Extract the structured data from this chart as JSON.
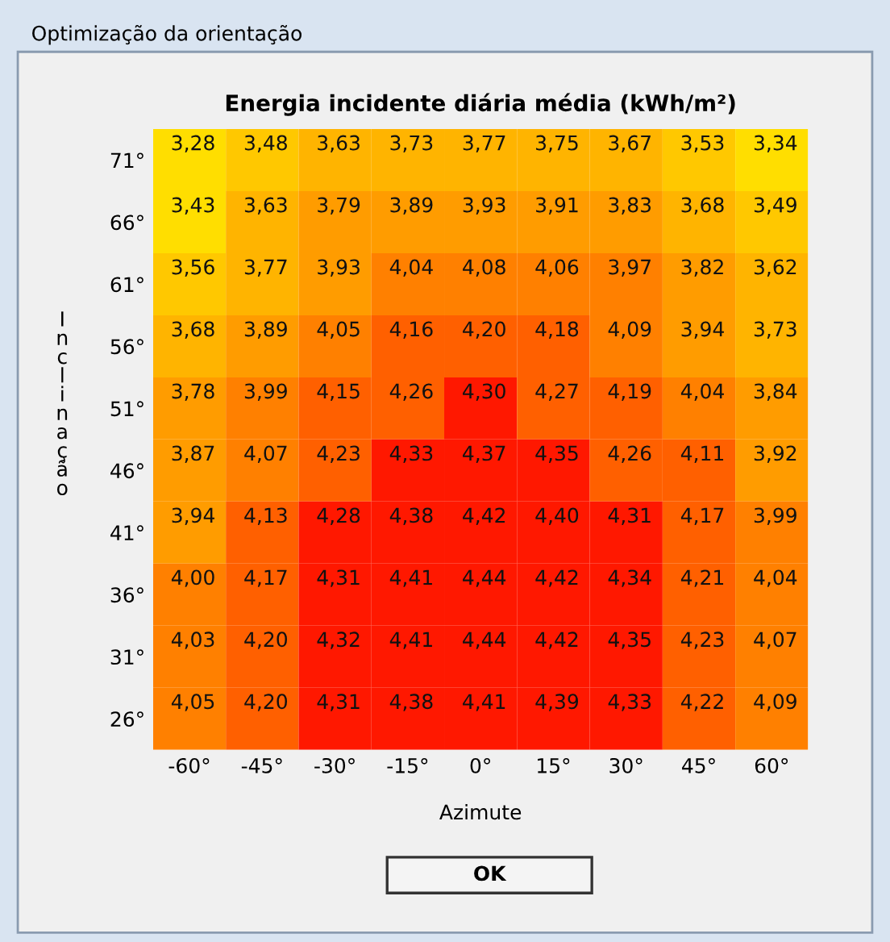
{
  "chart_data": {
    "type": "heatmap",
    "title": "Energia incidente diária média (kWh/m²)",
    "xlabel": "Azimute",
    "ylabel": "Inclinação",
    "annotations": [
      "Optimização da orientação",
      "OK"
    ],
    "categories": [
      "-60°",
      "-45°",
      "-30°",
      "-15°",
      "0°",
      "15°",
      "30°",
      "45°",
      "60°"
    ],
    "y_categories": [
      "71°",
      "66°",
      "61°",
      "56°",
      "51°",
      "46°",
      "41°",
      "36°",
      "31°",
      "26°"
    ],
    "cells": [
      [
        3.28,
        3.48,
        3.63,
        3.73,
        3.77,
        3.75,
        3.67,
        3.53,
        3.34
      ],
      [
        3.43,
        3.63,
        3.79,
        3.89,
        3.93,
        3.91,
        3.83,
        3.68,
        3.49
      ],
      [
        3.56,
        3.77,
        3.93,
        4.04,
        4.08,
        4.06,
        3.97,
        3.82,
        3.62
      ],
      [
        3.68,
        3.89,
        4.05,
        4.16,
        4.2,
        4.18,
        4.09,
        3.94,
        3.73
      ],
      [
        3.78,
        3.99,
        4.15,
        4.26,
        4.3,
        4.27,
        4.19,
        4.04,
        3.84
      ],
      [
        3.87,
        4.07,
        4.23,
        4.33,
        4.37,
        4.35,
        4.26,
        4.11,
        3.92
      ],
      [
        3.94,
        4.13,
        4.28,
        4.38,
        4.42,
        4.4,
        4.31,
        4.17,
        3.99
      ],
      [
        4.0,
        4.17,
        4.31,
        4.41,
        4.44,
        4.42,
        4.34,
        4.21,
        4.04
      ],
      [
        4.03,
        4.2,
        4.32,
        4.41,
        4.44,
        4.42,
        4.35,
        4.23,
        4.07
      ],
      [
        4.05,
        4.2,
        4.31,
        4.38,
        4.41,
        4.39,
        4.33,
        4.22,
        4.09
      ]
    ],
    "cell_labels": [
      [
        "3,28",
        "3,48",
        "3,63",
        "3,73",
        "3,77",
        "3,75",
        "3,67",
        "3,53",
        "3,34"
      ],
      [
        "3,43",
        "3,63",
        "3,79",
        "3,89",
        "3,93",
        "3,91",
        "3,83",
        "3,68",
        "3,49"
      ],
      [
        "3,56",
        "3,77",
        "3,93",
        "4,04",
        "4,08",
        "4,06",
        "3,97",
        "3,82",
        "3,62"
      ],
      [
        "3,68",
        "3,89",
        "4,05",
        "4,16",
        "4,20",
        "4,18",
        "4,09",
        "3,94",
        "3,73"
      ],
      [
        "3,78",
        "3,99",
        "4,15",
        "4,26",
        "4,30",
        "4,27",
        "4,19",
        "4,04",
        "3,84"
      ],
      [
        "3,87",
        "4,07",
        "4,23",
        "4,33",
        "4,37",
        "4,35",
        "4,26",
        "4,11",
        "3,92"
      ],
      [
        "3,94",
        "4,13",
        "4,28",
        "4,38",
        "4,42",
        "4,40",
        "4,31",
        "4,17",
        "3,99"
      ],
      [
        "4,00",
        "4,17",
        "4,31",
        "4,41",
        "4,44",
        "4,42",
        "4,34",
        "4,21",
        "4,04"
      ],
      [
        "4,03",
        "4,20",
        "4,32",
        "4,41",
        "4,44",
        "4,42",
        "4,35",
        "4,23",
        "4,07"
      ],
      [
        "4,05",
        "4,20",
        "4,31",
        "4,38",
        "4,41",
        "4,39",
        "4,33",
        "4,22",
        "4,09"
      ]
    ]
  }
}
